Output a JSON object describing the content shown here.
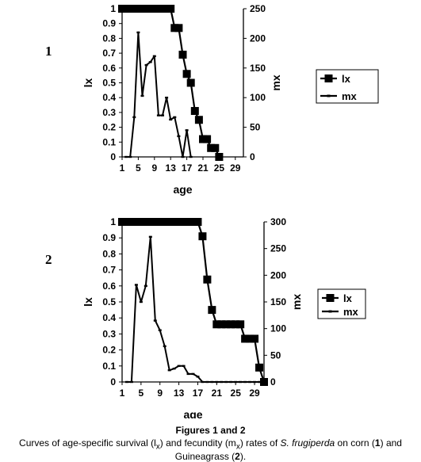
{
  "figure_labels": [
    "1",
    "2"
  ],
  "caption": {
    "title": "Figures 1  and 2",
    "prefix": "Curves of age-specific survival (l",
    "sub1": "x",
    "mid1": ") and fecundity (m",
    "sub2": "x",
    "mid2": ") rates of ",
    "species": "S. frugiperda",
    "mid3": " on corn (",
    "n1": "1",
    "mid4": ") and Guineagrass (",
    "n2": "2",
    "end": ")."
  },
  "colors": {
    "lines": "#000000",
    "background": "#ffffff"
  },
  "chart_data": [
    {
      "type": "line",
      "xlabel": "age",
      "ylabel_left": "lx",
      "ylabel_right": "mx",
      "xlim": [
        1,
        31
      ],
      "ylim_left": [
        0,
        1
      ],
      "ylim_right": [
        0,
        250
      ],
      "x_ticks": [
        "1",
        "5",
        "9",
        "13",
        "17",
        "21",
        "25",
        "29"
      ],
      "y_ticks_left": [
        "0",
        "0.1",
        "0.2",
        "0.3",
        "0.4",
        "0.5",
        "0.6",
        "0.7",
        "0.8",
        "0.9",
        "1"
      ],
      "y_ticks_right": [
        "0",
        "50",
        "100",
        "150",
        "200",
        "250"
      ],
      "legend_position": "right",
      "series": [
        {
          "name": "lx",
          "axis": "left",
          "marker": "square",
          "x": [
            1,
            2,
            3,
            4,
            5,
            6,
            7,
            8,
            9,
            10,
            11,
            12,
            13,
            14,
            15,
            16,
            17,
            18,
            19,
            20,
            21,
            22,
            23,
            24,
            25
          ],
          "y": [
            1,
            1,
            1,
            1,
            1,
            1,
            1,
            1,
            1,
            1,
            1,
            1,
            1,
            0.87,
            0.87,
            0.69,
            0.56,
            0.5,
            0.31,
            0.25,
            0.12,
            0.12,
            0.06,
            0.06,
            0
          ]
        },
        {
          "name": "mx",
          "axis": "right",
          "marker": "dash",
          "x": [
            2,
            3,
            4,
            5,
            6,
            7,
            8,
            9,
            10,
            11,
            12,
            13,
            14,
            15,
            16,
            17,
            18
          ],
          "y": [
            0,
            0,
            67,
            210,
            103,
            155,
            160,
            170,
            70,
            70,
            100,
            63,
            67,
            35,
            0,
            45,
            0
          ]
        }
      ]
    },
    {
      "type": "line",
      "xlabel": "age",
      "ylabel_left": "lx",
      "ylabel_right": "mx",
      "xlim": [
        1,
        31
      ],
      "ylim_left": [
        0,
        1
      ],
      "ylim_right": [
        0,
        300
      ],
      "x_ticks": [
        "1",
        "5",
        "9",
        "13",
        "17",
        "21",
        "25",
        "29"
      ],
      "y_ticks_left": [
        "0",
        "0.1",
        "0.2",
        "0.3",
        "0.4",
        "0.5",
        "0.6",
        "0.7",
        "0.8",
        "0.9",
        "1"
      ],
      "y_ticks_right": [
        "0",
        "50",
        "100",
        "150",
        "200",
        "250",
        "300"
      ],
      "legend_position": "right",
      "series": [
        {
          "name": "lx",
          "axis": "left",
          "marker": "square",
          "x": [
            1,
            2,
            3,
            4,
            5,
            6,
            7,
            8,
            9,
            10,
            11,
            12,
            13,
            14,
            15,
            16,
            17,
            18,
            19,
            20,
            21,
            22,
            23,
            24,
            25,
            26,
            27,
            28,
            29,
            30,
            31
          ],
          "y": [
            1,
            1,
            1,
            1,
            1,
            1,
            1,
            1,
            1,
            1,
            1,
            1,
            1,
            1,
            1,
            1,
            1,
            0.91,
            0.64,
            0.45,
            0.36,
            0.36,
            0.36,
            0.36,
            0.36,
            0.36,
            0.27,
            0.27,
            0.27,
            0.09,
            0
          ]
        },
        {
          "name": "mx",
          "axis": "right",
          "marker": "dash",
          "x": [
            2,
            3,
            4,
            5,
            6,
            7,
            8,
            9,
            10,
            11,
            12,
            13,
            14,
            15,
            16,
            17,
            18,
            19,
            20,
            21,
            22,
            23,
            24,
            25,
            26,
            27,
            28,
            29,
            30,
            31
          ],
          "y": [
            0,
            0,
            182,
            150,
            180,
            272,
            115,
            97,
            67,
            22,
            25,
            30,
            30,
            15,
            15,
            10,
            0,
            0,
            0,
            0,
            0,
            0,
            0,
            0,
            0,
            0,
            0,
            0,
            0,
            0
          ]
        }
      ]
    }
  ]
}
